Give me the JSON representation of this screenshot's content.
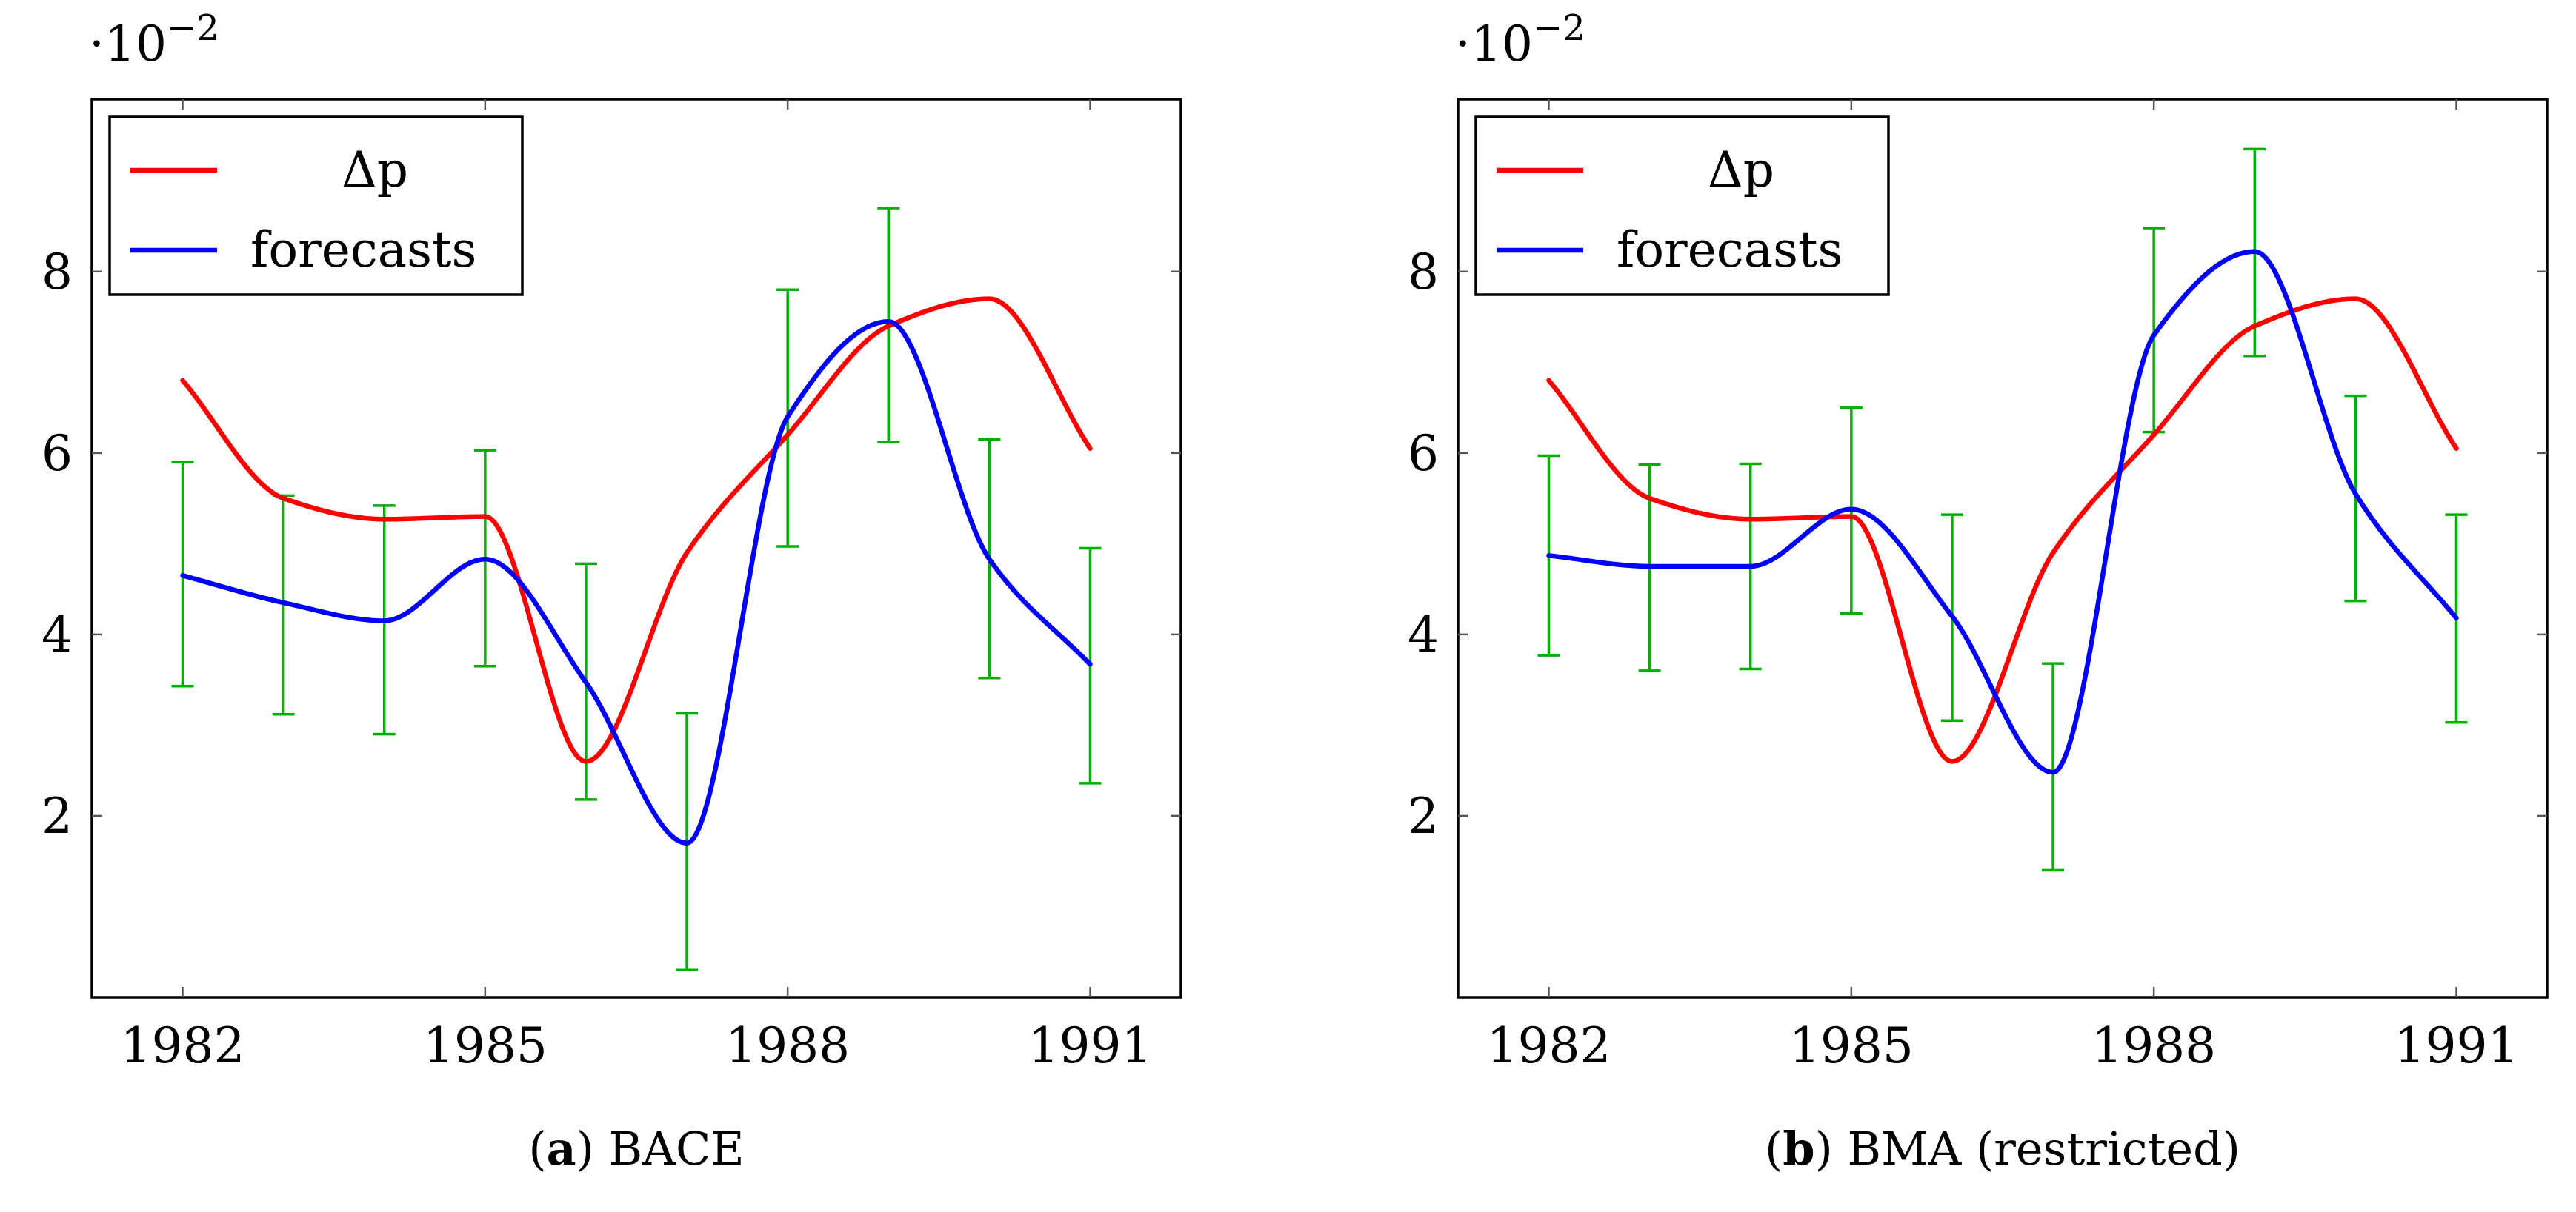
{
  "chart_data": [
    {
      "type": "line",
      "subcaption": {
        "label": "a",
        "text": "BACE"
      },
      "axis_exponent": {
        "base": "·10",
        "power": "−2"
      },
      "x_ticks": [
        "1982",
        "1985",
        "1988",
        "1991"
      ],
      "y_ticks": [
        "2",
        "4",
        "6",
        "8"
      ],
      "xlim": [
        1981.1,
        1991.9
      ],
      "ylim": [
        0,
        9.9
      ],
      "grid": false,
      "legend_position": "top-left",
      "legend": [
        "Δp",
        "forecasts"
      ],
      "x": [
        1982,
        1983,
        1984,
        1985,
        1986,
        1987,
        1988,
        1989,
        1990,
        1991
      ],
      "series": [
        {
          "name": "Δp",
          "color": "#ff0000",
          "values": [
            6.8,
            5.5,
            5.27,
            5.3,
            2.6,
            4.9,
            6.2,
            7.4,
            7.7,
            6.05
          ]
        },
        {
          "name": "forecasts",
          "color": "#0000ff",
          "values": [
            4.65,
            4.35,
            4.15,
            4.83,
            3.47,
            1.7,
            6.4,
            7.45,
            4.83,
            3.67
          ]
        }
      ],
      "error_bars": {
        "color": "#00b000",
        "lower": [
          3.43,
          3.12,
          2.9,
          3.65,
          2.18,
          0.3,
          4.97,
          6.12,
          3.52,
          2.36
        ],
        "upper": [
          5.9,
          5.53,
          5.42,
          6.03,
          4.78,
          3.13,
          7.8,
          8.7,
          6.15,
          4.95
        ]
      }
    },
    {
      "type": "line",
      "subcaption": {
        "label": "b",
        "text": "BMA (restricted)"
      },
      "axis_exponent": {
        "base": "·10",
        "power": "−2"
      },
      "x_ticks": [
        "1982",
        "1985",
        "1988",
        "1991"
      ],
      "y_ticks": [
        "2",
        "4",
        "6",
        "8"
      ],
      "xlim": [
        1981.1,
        1991.9
      ],
      "ylim": [
        0,
        9.9
      ],
      "grid": false,
      "legend_position": "top-left",
      "legend": [
        "Δp",
        "forecasts"
      ],
      "x": [
        1982,
        1983,
        1984,
        1985,
        1986,
        1987,
        1988,
        1989,
        1990,
        1991
      ],
      "series": [
        {
          "name": "Δp",
          "color": "#ff0000",
          "values": [
            6.8,
            5.5,
            5.27,
            5.3,
            2.6,
            4.9,
            6.2,
            7.4,
            7.7,
            6.05
          ]
        },
        {
          "name": "forecasts",
          "color": "#0000ff",
          "values": [
            4.87,
            4.75,
            4.75,
            5.38,
            4.2,
            2.48,
            7.3,
            8.22,
            5.55,
            4.18
          ]
        }
      ],
      "error_bars": {
        "color": "#00b000",
        "lower": [
          3.77,
          3.6,
          3.62,
          4.23,
          3.05,
          1.4,
          6.23,
          7.07,
          4.37,
          3.03
        ],
        "upper": [
          5.97,
          5.87,
          5.88,
          6.5,
          5.32,
          3.68,
          8.48,
          9.35,
          6.63,
          5.32
        ]
      }
    }
  ]
}
